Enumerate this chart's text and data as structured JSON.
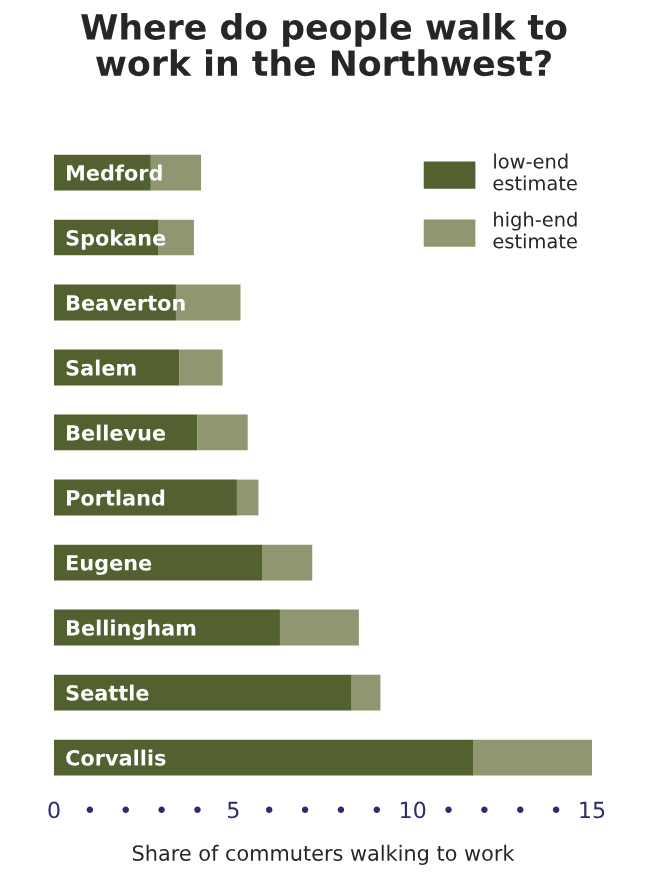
{
  "chart_data": {
    "type": "bar",
    "orientation": "horizontal",
    "stacked": true,
    "title": "Where do people walk to\nwork in the Northwest?",
    "xlabel": "Share of commuters walking to work",
    "categories": [
      "Medford",
      "Spokane",
      "Beaverton",
      "Salem",
      "Bellevue",
      "Portland",
      "Eugene",
      "Bellingham",
      "Seattle",
      "Corvallis"
    ],
    "series": [
      {
        "name": "low-end\nestimate",
        "color": "#536130",
        "values": [
          2.7,
          2.9,
          3.4,
          3.5,
          4.0,
          5.1,
          5.8,
          6.3,
          8.3,
          11.7
        ]
      },
      {
        "name": "high-end\nestimate",
        "color": "#8f9670",
        "values": [
          1.4,
          1.0,
          1.8,
          1.2,
          1.4,
          0.6,
          1.4,
          2.2,
          0.8,
          3.3
        ]
      }
    ],
    "xlim": [
      0,
      15
    ],
    "xticks": [
      0,
      {
        "value": 1,
        "label": "•"
      },
      {
        "value": 2,
        "label": "•"
      },
      {
        "value": 3,
        "label": "•"
      },
      {
        "value": 4,
        "label": "•"
      },
      5,
      {
        "value": 6,
        "label": "•"
      },
      {
        "value": 7,
        "label": "•"
      },
      {
        "value": 8,
        "label": "•"
      },
      {
        "value": 9,
        "label": "•"
      },
      10,
      {
        "value": 11,
        "label": "•"
      },
      {
        "value": 12,
        "label": "•"
      },
      {
        "value": 13,
        "label": "•"
      },
      {
        "value": 14,
        "label": "•"
      },
      15
    ],
    "legend": "top right",
    "grid": false
  }
}
